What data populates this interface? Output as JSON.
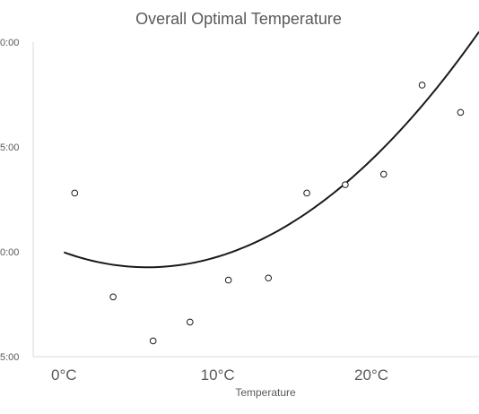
{
  "chart_data": {
    "type": "scatter",
    "title": "Overall Optimal Temperature",
    "xlabel": "Temperature",
    "ylabel": "",
    "x_tick_labels": [
      "0°C",
      "10°C",
      "20°C"
    ],
    "x_tick_values": [
      0,
      10,
      20
    ],
    "y_tick_labels": [
      "0:00",
      "5:00",
      "0:00",
      "5:00"
    ],
    "y_tick_values": [
      3,
      2,
      1,
      0
    ],
    "xlim": [
      -2,
      27
    ],
    "ylim": [
      0,
      3
    ],
    "grid": false,
    "legend": "none",
    "points": {
      "x": [
        0.7,
        3.2,
        5.8,
        8.2,
        10.7,
        13.3,
        15.8,
        18.3,
        20.8,
        23.3,
        25.8
      ],
      "y": [
        1.56,
        0.57,
        0.15,
        0.33,
        0.73,
        0.75,
        1.56,
        1.64,
        1.74,
        2.59,
        2.33
      ]
    },
    "trendline": {
      "type": "polynomial",
      "coefficients": [
        0.995,
        -0.0525,
        0.00483
      ]
    },
    "colors": {
      "text": "#595959",
      "axis": "#d9d9d9",
      "marks": "#1a1a1a"
    }
  }
}
